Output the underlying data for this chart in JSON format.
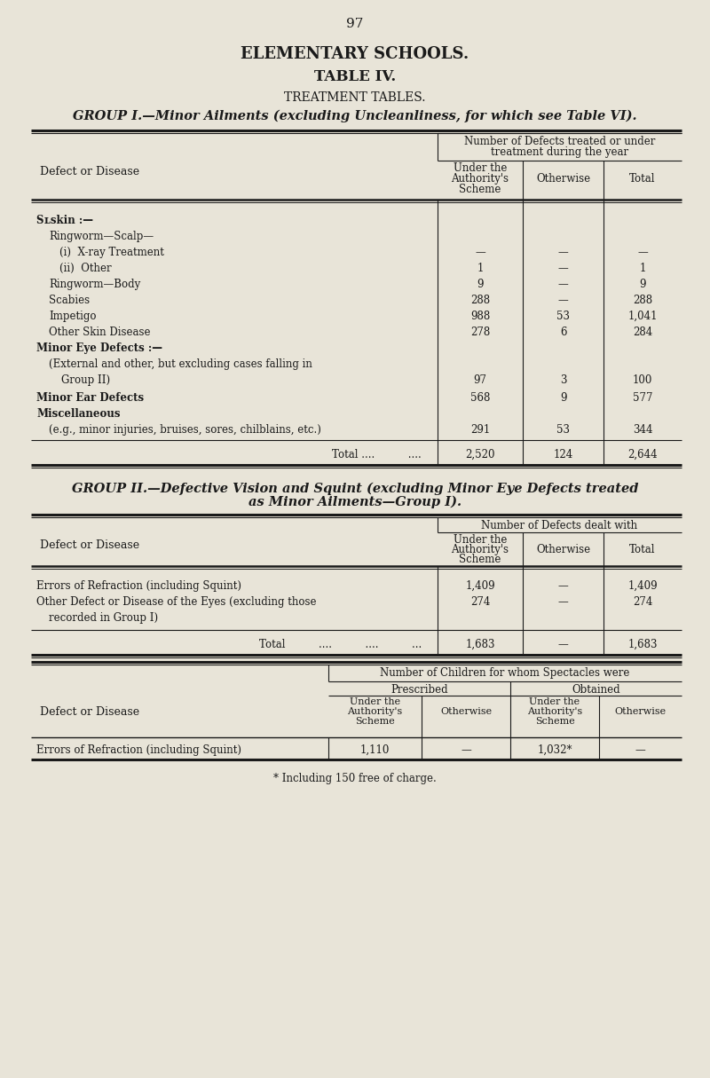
{
  "page_number": "97",
  "main_title": "ELEMENTARY SCHOOLS.",
  "subtitle1": "TABLE IV.",
  "subtitle2": "TREATMENT TABLES.",
  "group1_title": "GROUP I.—Minor Ailments (excluding Uncleanliness, for which see Table VI).",
  "group1_rows": [
    {
      "label": "Sʟskin :—",
      "label_display": "Skin :—",
      "indent": 0,
      "small_caps": true,
      "values": [
        null,
        null,
        null
      ]
    },
    {
      "label": "Ringworm—Scalp—",
      "indent": 1,
      "small_caps": false,
      "values": [
        null,
        null,
        null
      ]
    },
    {
      "label": "(i)  X-ray Treatment",
      "indent": 2,
      "small_caps": false,
      "dotleader": true,
      "values": [
        "—",
        "—",
        "—"
      ]
    },
    {
      "label": "(ii)  Other",
      "indent": 2,
      "small_caps": false,
      "dotleader": true,
      "values": [
        "1",
        "—",
        "1"
      ]
    },
    {
      "label": "Ringworm—Body",
      "indent": 1,
      "small_caps": false,
      "dotleader": true,
      "values": [
        "9",
        "—",
        "9"
      ]
    },
    {
      "label": "Scabies",
      "indent": 1,
      "small_caps": false,
      "dotleader": true,
      "values": [
        "288",
        "—",
        "288"
      ]
    },
    {
      "label": "Impetigo",
      "indent": 1,
      "small_caps": false,
      "dotleader": true,
      "values": [
        "988",
        "53",
        "1,041"
      ]
    },
    {
      "label": "Other Skin Disease",
      "indent": 1,
      "small_caps": false,
      "dotleader": true,
      "values": [
        "278",
        "6",
        "284"
      ]
    },
    {
      "label": "Minor Eye Defects :—",
      "indent": 0,
      "small_caps": true,
      "values": [
        null,
        null,
        null
      ]
    },
    {
      "label": "(External and other, but excluding cases falling in\nGroup II)",
      "indent": 1,
      "small_caps": false,
      "dotleader": true,
      "values": [
        "97",
        "3",
        "100"
      ]
    },
    {
      "label": "Minor Ear Defects",
      "indent": 0,
      "small_caps": true,
      "dotleader": true,
      "values": [
        "568",
        "9",
        "577"
      ]
    },
    {
      "label": "Miscellaneous",
      "indent": 0,
      "small_caps": true,
      "values": [
        null,
        null,
        null
      ]
    },
    {
      "label": "(e.g., minor injuries, bruises, sores, chilblains, etc.)",
      "indent": 1,
      "small_caps": false,
      "dotleader": true,
      "values": [
        "291",
        "53",
        "344"
      ]
    }
  ],
  "group1_total": {
    "label": "Total ....",
    "values": [
      "2,520",
      "124",
      "2,644"
    ]
  },
  "group2_title_line1": "GROUP II.—Defective Vision and Squint (excluding Minor Eye Defects treated",
  "group2_title_line2": "as Minor Ailments—Group I).",
  "group2_rows": [
    {
      "label": "Errors of Refraction (including Squint)",
      "dotleader": true,
      "values": [
        "1,409",
        "—",
        "1,409"
      ]
    },
    {
      "label": "Other Defect or Disease of the Eyes (excluding those\nrecorded in Group I)",
      "dotleader": true,
      "values": [
        "274",
        "—",
        "274"
      ]
    }
  ],
  "group2_total": {
    "values": [
      "1,683",
      "—",
      "1,683"
    ]
  },
  "group3_row": {
    "label": "Errors of Refraction (including Squint)",
    "values": [
      "1,110",
      "—",
      "1,032*",
      "—"
    ]
  },
  "footnote": "* Including 150 free of charge.",
  "bg_color": "#e8e4d8",
  "text_color": "#1a1a1a",
  "line_color": "#1a1a1a"
}
